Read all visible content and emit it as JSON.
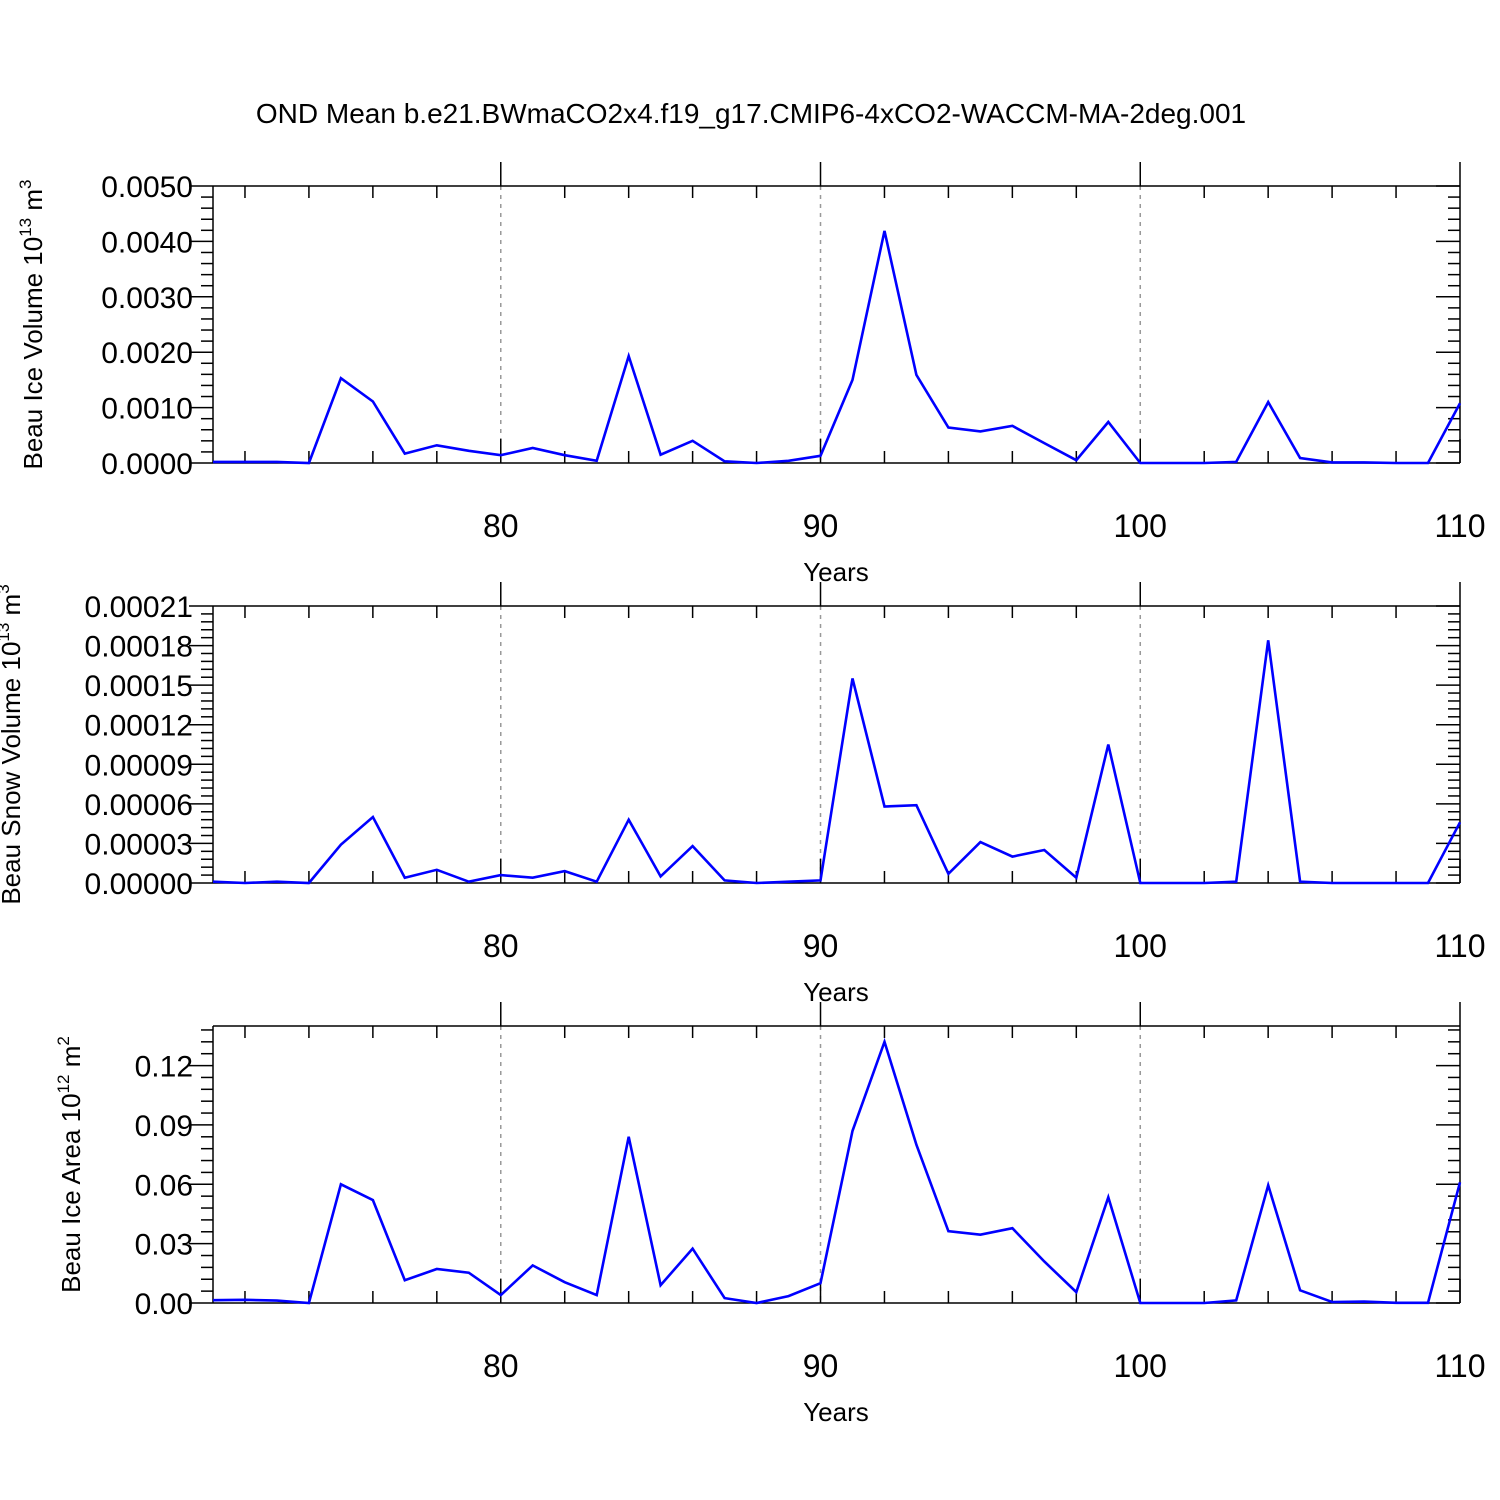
{
  "title": "OND Mean b.e21.BWmaCO2x4.f19_g17.CMIP6-4xCO2-WACCM-MA-2deg.001",
  "line_color": "#0000ff",
  "chart_data": [
    {
      "type": "line",
      "ylabel": {
        "base": "Beau Ice Volume 10",
        "exp": "13",
        "unit": " m",
        "unit_exp": "3"
      },
      "xlabel": "Years",
      "xlim": [
        71,
        110
      ],
      "xticks": [
        80,
        90,
        100,
        110
      ],
      "xtick_labels": [
        "80",
        "90",
        "100",
        "110"
      ],
      "ylim": [
        0,
        0.005
      ],
      "yticks": [
        0,
        0.001,
        0.002,
        0.003,
        0.004,
        0.005
      ],
      "ytick_labels": [
        "0.0000",
        "0.0010",
        "0.0020",
        "0.0030",
        "0.0040",
        "0.0050"
      ],
      "grid": "dashed vertical at major x ticks",
      "x": [
        71,
        72,
        73,
        74,
        75,
        76,
        77,
        78,
        79,
        80,
        81,
        82,
        83,
        84,
        85,
        86,
        87,
        88,
        89,
        90,
        91,
        92,
        93,
        94,
        95,
        96,
        97,
        98,
        99,
        100,
        101,
        102,
        103,
        104,
        105,
        106,
        107,
        108,
        109,
        110
      ],
      "values": [
        2e-05,
        2e-05,
        2e-05,
        0.0,
        0.00153,
        0.00111,
        0.00017,
        0.00032,
        0.00022,
        0.00014,
        0.00027,
        0.00014,
        4e-05,
        0.00193,
        0.00015,
        0.0004,
        3e-05,
        0.0,
        4e-05,
        0.00013,
        0.0015,
        0.00419,
        0.00159,
        0.00064,
        0.00057,
        0.00067,
        0.00036,
        5e-05,
        0.00074,
        0.0,
        0.0,
        0.0,
        2e-05,
        0.0011,
        9e-05,
        1e-05,
        1e-05,
        0.0,
        0.0,
        0.00108
      ]
    },
    {
      "type": "line",
      "ylabel": {
        "base": "Beau Snow Volume 10",
        "exp": "13",
        "unit": " m",
        "unit_exp": "3"
      },
      "xlabel": "Years",
      "xlim": [
        71,
        110
      ],
      "xticks": [
        80,
        90,
        100,
        110
      ],
      "xtick_labels": [
        "80",
        "90",
        "100",
        "110"
      ],
      "ylim": [
        0,
        0.00021
      ],
      "yticks": [
        0,
        3e-05,
        6e-05,
        9e-05,
        0.00012,
        0.00015,
        0.00018,
        0.00021
      ],
      "ytick_labels": [
        "0.00000",
        "0.00003",
        "0.00006",
        "0.00009",
        "0.00012",
        "0.00015",
        "0.00018",
        "0.00021"
      ],
      "grid": "dashed vertical at major x ticks",
      "x": [
        71,
        72,
        73,
        74,
        75,
        76,
        77,
        78,
        79,
        80,
        81,
        82,
        83,
        84,
        85,
        86,
        87,
        88,
        89,
        90,
        91,
        92,
        93,
        94,
        95,
        96,
        97,
        98,
        99,
        100,
        101,
        102,
        103,
        104,
        105,
        106,
        107,
        108,
        109,
        110
      ],
      "values": [
        1e-06,
        0.0,
        1e-06,
        0.0,
        2.9e-05,
        5e-05,
        4e-06,
        1e-05,
        1e-06,
        6e-06,
        4e-06,
        9e-06,
        1e-06,
        4.8e-05,
        5e-06,
        2.8e-05,
        2e-06,
        0.0,
        1e-06,
        2e-06,
        0.000155,
        5.8e-05,
        5.9e-05,
        7e-06,
        3.1e-05,
        2e-05,
        2.5e-05,
        4e-06,
        0.000105,
        0.0,
        0.0,
        0.0,
        1e-06,
        0.000184,
        1e-06,
        0.0,
        0.0,
        0.0,
        0.0,
        4.6e-05
      ]
    },
    {
      "type": "line",
      "ylabel": {
        "base": "Beau Ice Area 10",
        "exp": "12",
        "unit": " m",
        "unit_exp": "2"
      },
      "xlabel": "Years",
      "xlim": [
        71,
        110
      ],
      "xticks": [
        80,
        90,
        100,
        110
      ],
      "xtick_labels": [
        "80",
        "90",
        "100",
        "110"
      ],
      "ylim": [
        0,
        0.14
      ],
      "yticks": [
        0,
        0.03,
        0.06,
        0.09,
        0.12
      ],
      "ytick_labels": [
        "0.00",
        "0.03",
        "0.06",
        "0.09",
        "0.12"
      ],
      "grid": "dashed vertical at major x ticks",
      "x": [
        71,
        72,
        73,
        74,
        75,
        76,
        77,
        78,
        79,
        80,
        81,
        82,
        83,
        84,
        85,
        86,
        87,
        88,
        89,
        90,
        91,
        92,
        93,
        94,
        95,
        96,
        97,
        98,
        99,
        100,
        101,
        102,
        103,
        104,
        105,
        106,
        107,
        108,
        109,
        110
      ],
      "values": [
        0.0014,
        0.0016,
        0.0012,
        0.0,
        0.06,
        0.052,
        0.0115,
        0.0172,
        0.0153,
        0.004,
        0.019,
        0.0105,
        0.004,
        0.084,
        0.009,
        0.0275,
        0.0025,
        0.0,
        0.0035,
        0.01,
        0.087,
        0.132,
        0.08,
        0.0363,
        0.0345,
        0.0378,
        0.021,
        0.0055,
        0.0534,
        0.0,
        0.0,
        0.0,
        0.0013,
        0.0595,
        0.0064,
        0.0005,
        0.0007,
        0.0001,
        0.0001,
        0.061
      ]
    }
  ]
}
